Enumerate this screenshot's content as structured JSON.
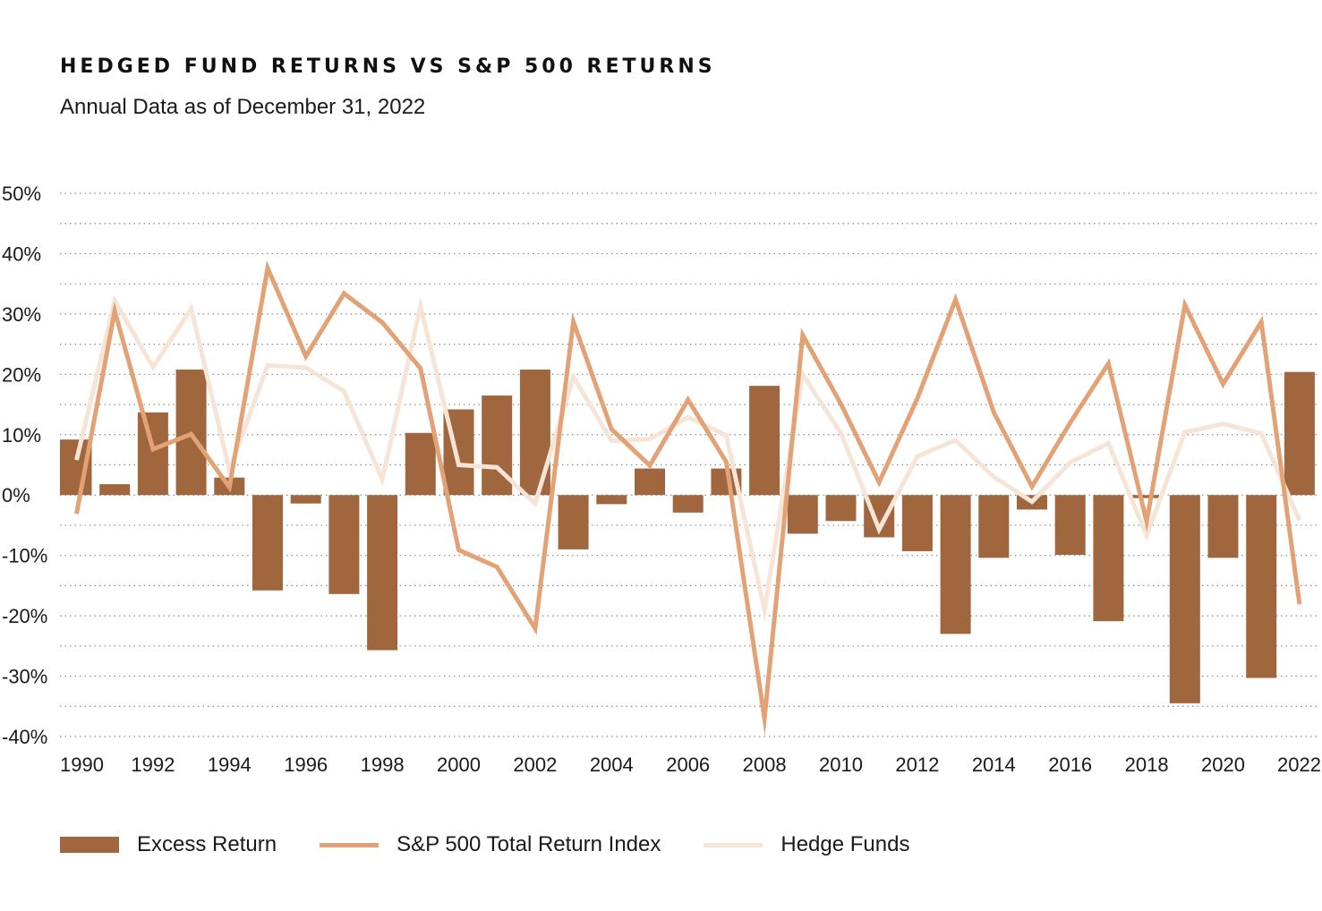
{
  "title": "HEDGED FUND RETURNS VS S&P 500 RETURNS",
  "subtitle": "Annual Data as of December 31, 2022",
  "colors": {
    "excess": "#a0673f",
    "sp500": "#e2a275",
    "hedge": "#f6e4d6",
    "grid": "#8a8a8a"
  },
  "legend": {
    "excess": "Excess Return",
    "sp500": "S&P 500 Total Return Index",
    "hedge": "Hedge Funds"
  },
  "chart_data": {
    "type": "bar",
    "title": "HEDGED FUND RETURNS VS S&P 500 RETURNS",
    "subtitle": "Annual Data as of December 31, 2022",
    "ylim": [
      -40,
      50
    ],
    "yticks": [
      "50%",
      "40%",
      "30%",
      "20%",
      "10%",
      "0%",
      "-10%",
      "-20%",
      "-30%",
      "-40%"
    ],
    "ytick_values": [
      50,
      40,
      30,
      20,
      10,
      0,
      -10,
      -20,
      -30,
      -40
    ],
    "xticks": [
      "1990",
      "1992",
      "1994",
      "1996",
      "1998",
      "2000",
      "2002",
      "2004",
      "2006",
      "2008",
      "2010",
      "2012",
      "2014",
      "2016",
      "2018",
      "2020",
      "2022"
    ],
    "grid": "dotted horizontal",
    "legend_position": "bottom",
    "categories": [
      1990,
      1991,
      1992,
      1993,
      1994,
      1995,
      1996,
      1997,
      1998,
      1999,
      2000,
      2001,
      2002,
      2003,
      2004,
      2005,
      2006,
      2007,
      2008,
      2009,
      2010,
      2011,
      2012,
      2013,
      2014,
      2015,
      2016,
      2017,
      2018,
      2019,
      2020,
      2021,
      2022
    ],
    "series": [
      {
        "name": "Excess Return",
        "kind": "bar",
        "values": [
          9.2,
          1.8,
          13.7,
          20.8,
          2.9,
          -15.8,
          -1.4,
          -16.4,
          -25.7,
          10.3,
          14.2,
          16.5,
          20.8,
          -9.0,
          -1.5,
          4.4,
          -2.9,
          4.4,
          18.1,
          -6.4,
          -4.3,
          -7.0,
          -9.3,
          -23.0,
          -10.4,
          -2.4,
          -9.9,
          -20.9,
          -0.5,
          -34.5,
          -10.4,
          -30.3,
          20.4
        ]
      },
      {
        "name": "S&P 500 Total Return Index",
        "kind": "line",
        "values": [
          -3.1,
          30.5,
          7.6,
          10.1,
          1.3,
          37.6,
          23.0,
          33.4,
          28.6,
          21.0,
          -9.1,
          -11.9,
          -22.1,
          28.7,
          10.9,
          4.9,
          15.8,
          5.5,
          -37.0,
          26.5,
          15.1,
          2.1,
          16.0,
          32.4,
          13.7,
          1.4,
          12.0,
          21.8,
          -4.4,
          31.5,
          18.4,
          28.7,
          -18.1
        ]
      },
      {
        "name": "Hedge Funds",
        "kind": "line",
        "values": [
          5.8,
          32.2,
          21.2,
          30.9,
          4.1,
          21.5,
          21.1,
          17.2,
          2.6,
          31.3,
          5.0,
          4.6,
          -1.4,
          19.6,
          9.0,
          9.3,
          12.9,
          9.9,
          -19.0,
          20.0,
          10.3,
          -5.7,
          6.4,
          9.1,
          3.0,
          -1.1,
          5.4,
          8.6,
          -6.7,
          10.4,
          11.8,
          10.2,
          -4.2
        ]
      }
    ]
  }
}
